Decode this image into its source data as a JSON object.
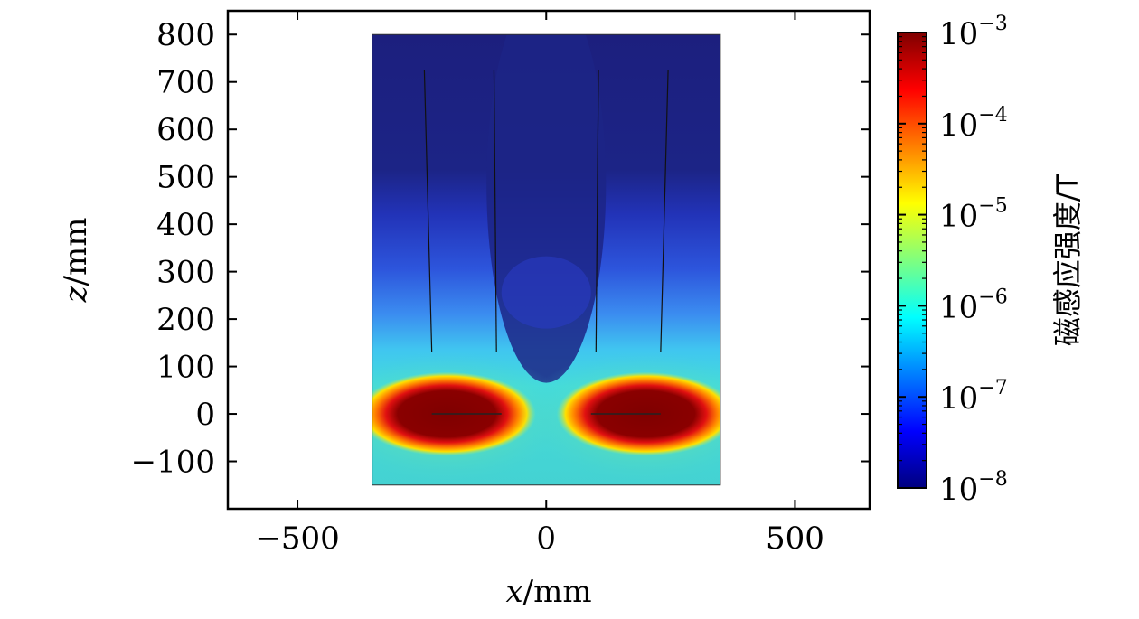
{
  "chart_data": {
    "type": "heatmap",
    "xlabel_var": "x",
    "xlabel_unit": "/mm",
    "ylabel_var": "z",
    "ylabel_unit": "/mm",
    "xlim": [
      -640,
      650
    ],
    "ylim": [
      -200,
      850
    ],
    "x_ticks": [
      -500,
      0,
      500
    ],
    "x_tick_labels": [
      "−500",
      "0",
      "500"
    ],
    "y_ticks": [
      800,
      700,
      600,
      500,
      400,
      300,
      200,
      100,
      0,
      -100
    ],
    "y_tick_labels": [
      "800",
      "700",
      "600",
      "500",
      "400",
      "300",
      "200",
      "100",
      "0",
      "−100"
    ],
    "domain_x": [
      -350,
      350
    ],
    "domain_z": [
      -150,
      800
    ],
    "colorbar": {
      "label": "磁感应强度/T",
      "scale": "log",
      "range": [
        1e-08,
        0.001
      ],
      "ticks": [
        {
          "base": "10",
          "exp": "−3",
          "value": 0.001
        },
        {
          "base": "10",
          "exp": "−4",
          "value": 0.0001
        },
        {
          "base": "10",
          "exp": "−5",
          "value": 1e-05
        },
        {
          "base": "10",
          "exp": "−6",
          "value": 1e-06
        },
        {
          "base": "10",
          "exp": "−7",
          "value": 1e-07
        },
        {
          "base": "10",
          "exp": "−8",
          "value": 1e-08
        }
      ],
      "colormap": [
        "#00007f",
        "#0000ff",
        "#007fff",
        "#00ffff",
        "#7fff7f",
        "#ffff00",
        "#ff7f00",
        "#ff0000",
        "#7f0000"
      ]
    },
    "source_lobes": [
      {
        "x_center": -200,
        "z_center": 0,
        "x_halfwidth": 160,
        "z_halfwidth": 75
      },
      {
        "x_center": 200,
        "z_center": 0,
        "x_halfwidth": 160,
        "z_halfwidth": 75
      }
    ],
    "field_lines": [
      {
        "x_top": -245,
        "z_top": 725,
        "x_bottom": -230,
        "z_bottom": 130
      },
      {
        "x_top": -105,
        "z_top": 725,
        "x_bottom": -100,
        "z_bottom": 130
      },
      {
        "x_top": 105,
        "z_top": 725,
        "x_bottom": 100,
        "z_bottom": 130
      },
      {
        "x_top": 245,
        "z_top": 725,
        "x_bottom": 230,
        "z_bottom": 130
      }
    ],
    "conductors": [
      {
        "x_start": -230,
        "x_end": -90,
        "z": 0
      },
      {
        "x_start": 90,
        "x_end": 230,
        "z": 0
      }
    ]
  }
}
